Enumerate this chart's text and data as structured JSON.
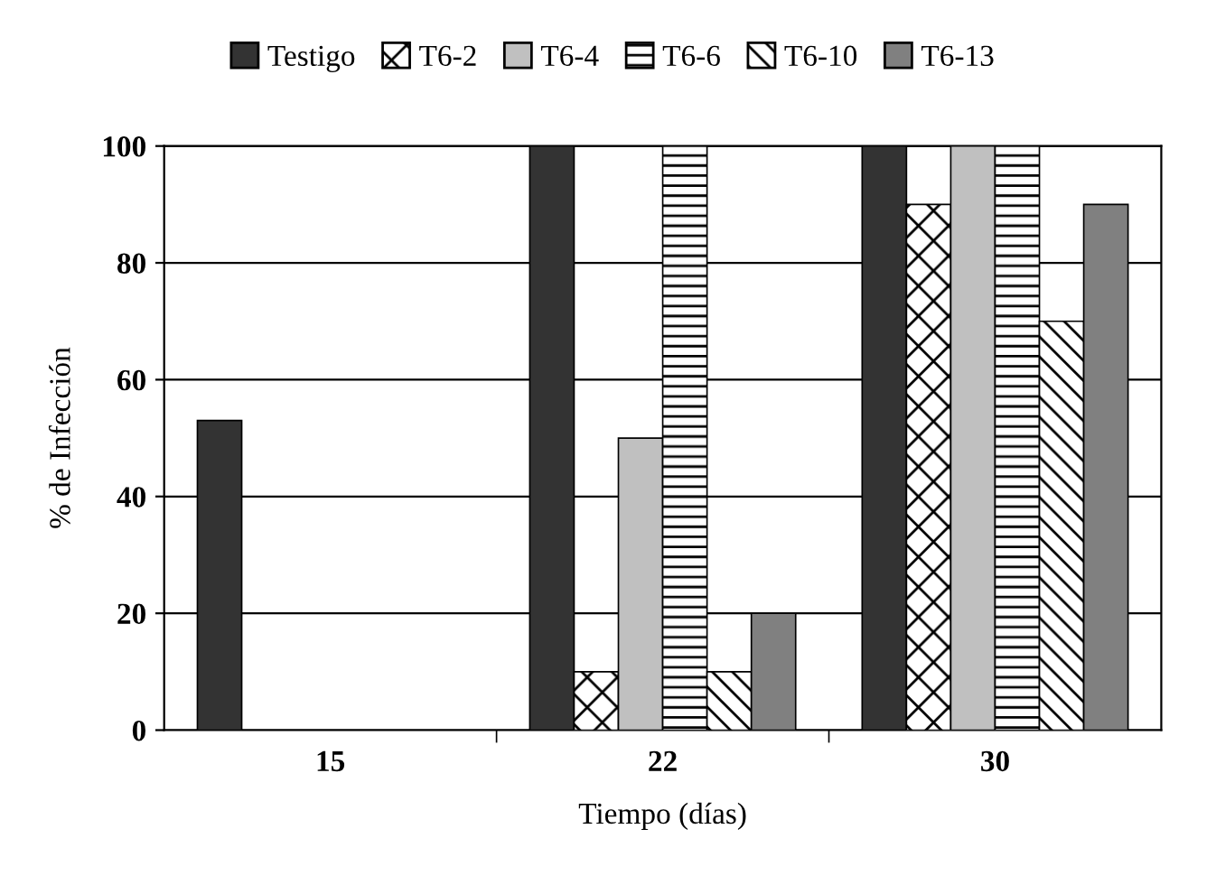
{
  "chart_data": {
    "type": "bar",
    "xlabel": "Tiempo (días)",
    "ylabel": "% de Infección",
    "categories": [
      "15",
      "22",
      "30"
    ],
    "series": [
      {
        "name": "Testigo",
        "color": "#333333",
        "values": [
          53,
          100,
          100
        ]
      },
      {
        "name": "T6-2",
        "color": "#000000",
        "values": [
          null,
          10,
          90
        ]
      },
      {
        "name": "T6-4",
        "color": "#c0c0c0",
        "values": [
          null,
          50,
          100
        ]
      },
      {
        "name": "T6-6",
        "color": "#000000",
        "values": [
          null,
          100,
          100
        ]
      },
      {
        "name": "T6-10",
        "color": "#000000",
        "values": [
          null,
          10,
          70
        ]
      },
      {
        "name": "T6-13",
        "color": "#808080",
        "values": [
          null,
          20,
          90
        ]
      }
    ],
    "ylim": [
      0,
      100
    ],
    "yticks": [
      0,
      20,
      40,
      60,
      80,
      100
    ],
    "grid": "y",
    "legend": "top"
  }
}
